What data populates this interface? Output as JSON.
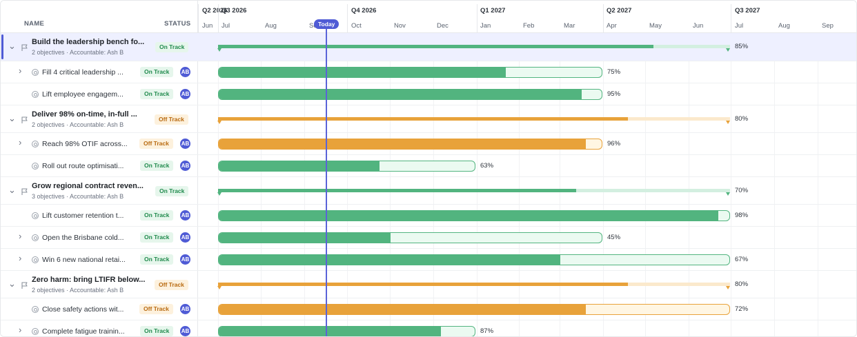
{
  "header": {
    "name_col": "NAME",
    "status_col": "STATUS"
  },
  "timeline": {
    "quarters": [
      "Q2 2026",
      "Q3 2026",
      "Q4 2026",
      "Q1 2027",
      "Q2 2027",
      "Q3 2027"
    ],
    "months": [
      "Jun",
      "Jul",
      "Aug",
      "Sep",
      "Oct",
      "Nov",
      "Dec",
      "Jan",
      "Feb",
      "Mar",
      "Apr",
      "May",
      "Jun",
      "Jul",
      "Aug",
      "Sep"
    ],
    "today_label": "Today"
  },
  "colors": {
    "on_track": "#52b47f",
    "on_track_light": "#d3efe0",
    "off_track": "#e8a23a",
    "off_track_light": "#fbe9cc",
    "accent": "#4f5bd5"
  },
  "rows": [
    {
      "type": "goal",
      "title": "Build the leadership bench fo...",
      "subtitle": "2 objectives · Accountable: Ash B",
      "status": "On Track",
      "progress": 85,
      "progress_label": "85%"
    },
    {
      "type": "objective",
      "title": "Fill 4 critical leadership ...",
      "expandable": true,
      "status": "On Track",
      "avatar": "AB",
      "progress": 75,
      "progress_label": "75%"
    },
    {
      "type": "objective",
      "title": "Lift employee engagem...",
      "expandable": false,
      "status": "On Track",
      "avatar": "AB",
      "progress": 95,
      "progress_label": "95%"
    },
    {
      "type": "goal",
      "title": "Deliver 98% on-time, in-full ...",
      "subtitle": "2 objectives · Accountable: Ash B",
      "status": "Off Track",
      "progress": 80,
      "progress_label": "80%"
    },
    {
      "type": "objective",
      "title": "Reach 98% OTIF across...",
      "expandable": true,
      "status": "Off Track",
      "avatar": "AB",
      "progress": 96,
      "progress_label": "96%"
    },
    {
      "type": "objective",
      "title": "Roll out route optimisati...",
      "expandable": false,
      "status": "On Track",
      "avatar": "AB",
      "progress": 63,
      "progress_label": "63%"
    },
    {
      "type": "goal",
      "title": "Grow regional contract reven...",
      "subtitle": "3 objectives · Accountable: Ash B",
      "status": "On Track",
      "progress": 70,
      "progress_label": "70%"
    },
    {
      "type": "objective",
      "title": "Lift customer retention t...",
      "expandable": false,
      "status": "On Track",
      "avatar": "AB",
      "progress": 98,
      "progress_label": "98%"
    },
    {
      "type": "objective",
      "title": "Open the Brisbane cold...",
      "expandable": true,
      "status": "On Track",
      "avatar": "AB",
      "progress": 45,
      "progress_label": "45%"
    },
    {
      "type": "objective",
      "title": "Win 6 new national retai...",
      "expandable": true,
      "status": "On Track",
      "avatar": "AB",
      "progress": 67,
      "progress_label": "67%"
    },
    {
      "type": "goal",
      "title": "Zero harm: bring LTIFR below...",
      "subtitle": "2 objectives · Accountable: Ash B",
      "status": "Off Track",
      "progress": 80,
      "progress_label": "80%"
    },
    {
      "type": "objective",
      "title": "Close safety actions wit...",
      "expandable": false,
      "status": "Off Track",
      "avatar": "AB",
      "progress": 72,
      "progress_label": "72%"
    },
    {
      "type": "objective",
      "title": "Complete fatigue trainin...",
      "expandable": true,
      "status": "On Track",
      "avatar": "AB",
      "progress": 87,
      "progress_label": "87%"
    }
  ]
}
